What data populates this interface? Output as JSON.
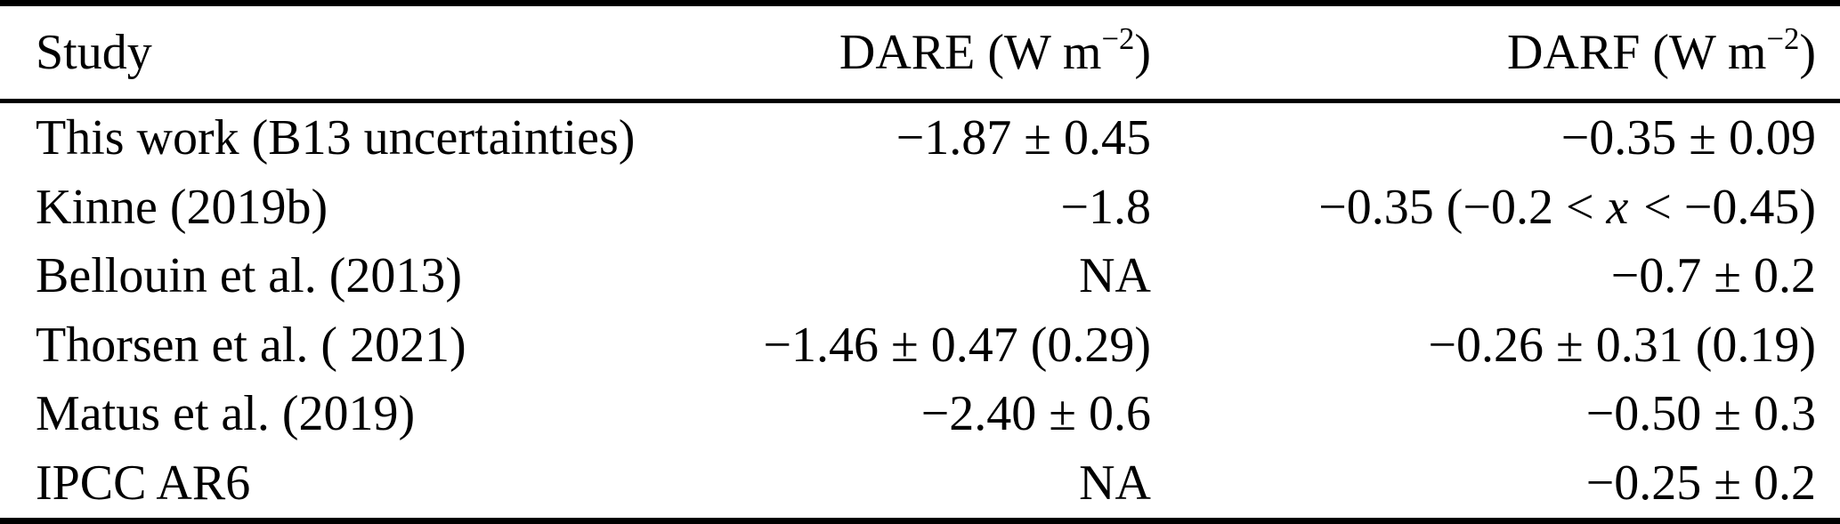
{
  "page": {
    "background_color": "#ffffff",
    "text_color": "#000000",
    "rule_color": "#000000"
  },
  "table": {
    "header": {
      "study": "Study",
      "dare": {
        "prefix": "DARE (W m",
        "sup": "−2",
        "suffix": ")"
      },
      "darf": {
        "prefix": "DARF (W m",
        "sup": "−2",
        "suffix": ")"
      }
    },
    "rows": [
      {
        "study": "This work (B13 uncertainties)",
        "dare": "−1.87 ± 0.45",
        "darf": "−0.35 ± 0.09"
      },
      {
        "study": "Kinne (2019b)",
        "dare": "−1.8",
        "darf_prefix": "−0.35 (−0.2 < ",
        "darf_var": "x",
        "darf_suffix": " < −0.45)"
      },
      {
        "study": "Bellouin et al. (2013)",
        "dare": "NA",
        "darf": "−0.7 ± 0.2"
      },
      {
        "study": "Thorsen et al. ( 2021)",
        "dare": "−1.46 ± 0.47 (0.29)",
        "darf": "−0.26 ± 0.31 (0.19)"
      },
      {
        "study": "Matus et al. (2019)",
        "dare": "−2.40 ± 0.6",
        "darf": "−0.50 ± 0.3"
      },
      {
        "study": "IPCC AR6",
        "dare": "NA",
        "darf": "−0.25 ± 0.2"
      }
    ]
  }
}
